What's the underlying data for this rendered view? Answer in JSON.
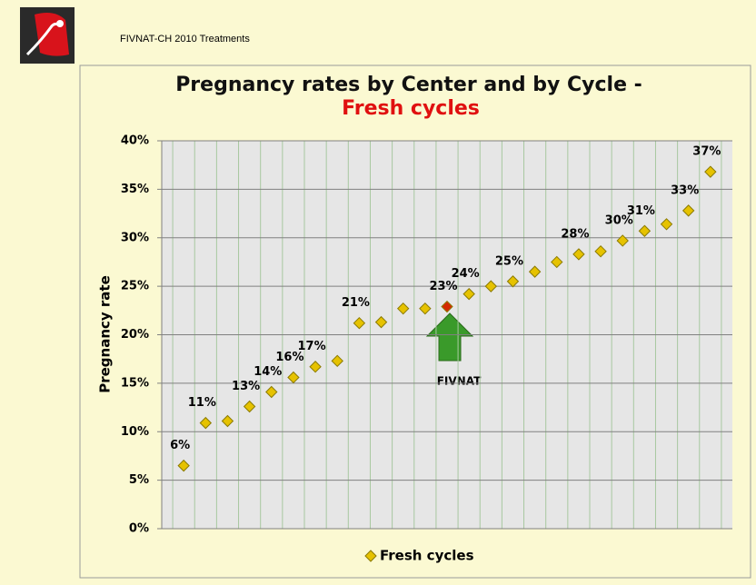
{
  "header": "FIVNAT-CH 2010 Treatments",
  "chart_data": {
    "type": "scatter",
    "title": "Pregnancy rates by Center and by Cycle -",
    "subtitle": "Fresh cycles",
    "ylabel": "Pregnancy rate",
    "x": [
      1,
      2,
      3,
      4,
      5,
      6,
      7,
      8,
      9,
      10,
      11,
      12,
      13,
      14,
      15,
      16,
      17,
      18,
      19,
      20,
      21,
      22,
      23,
      24,
      25
    ],
    "xlim": [
      0,
      26
    ],
    "ylim": [
      0,
      40
    ],
    "yticks": [
      {
        "value": 0,
        "label": "0%"
      },
      {
        "value": 5,
        "label": "5%"
      },
      {
        "value": 10,
        "label": "10%"
      },
      {
        "value": 15,
        "label": "15%"
      },
      {
        "value": 20,
        "label": "20%"
      },
      {
        "value": 25,
        "label": "25%"
      },
      {
        "value": 30,
        "label": "30%"
      },
      {
        "value": 35,
        "label": "35%"
      },
      {
        "value": 40,
        "label": "40%"
      }
    ],
    "grid": true,
    "series": [
      {
        "name": "Fresh cycles",
        "color": "#e6c200",
        "values": [
          6.5,
          10.9,
          11.1,
          12.6,
          14.1,
          15.6,
          16.7,
          17.3,
          21.2,
          21.3,
          22.7,
          22.7,
          22.9,
          24.2,
          25.0,
          25.5,
          26.5,
          27.5,
          28.3,
          28.6,
          29.7,
          30.7,
          31.4,
          32.8,
          36.8
        ],
        "value_labels": [
          "6%",
          "11%",
          null,
          "13%",
          "14%",
          "16%",
          "17%",
          null,
          "21%",
          null,
          null,
          null,
          "23%",
          "24%",
          null,
          "25%",
          null,
          null,
          "28%",
          null,
          "30%",
          "31%",
          null,
          "33%",
          "37%"
        ]
      }
    ],
    "highlight": {
      "index": 12,
      "color": "#d42a00"
    },
    "annotation": "FIVNAT",
    "legend": "bottom"
  }
}
